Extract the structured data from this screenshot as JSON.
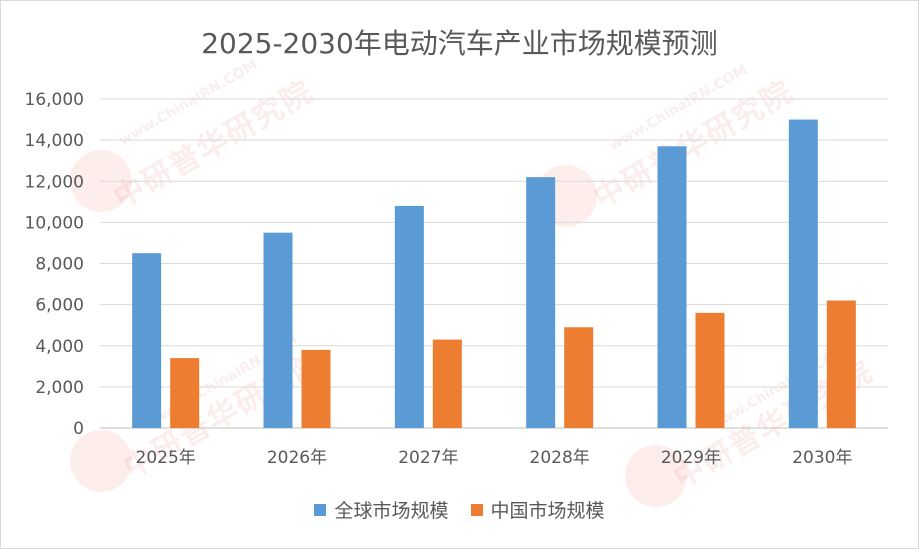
{
  "watermark": {
    "text": "中研普华研究院",
    "url": "www.ChinaIRN.COM",
    "logo": "CIRN"
  },
  "chart_data": {
    "type": "bar",
    "title": "2025-2030年电动汽车产业市场规模预测",
    "xlabel": "",
    "ylabel": "",
    "categories": [
      "2025年",
      "2026年",
      "2027年",
      "2028年",
      "2029年",
      "2030年"
    ],
    "series": [
      {
        "name": "全球市场规模",
        "color": "#5B9BD5",
        "values": [
          8500,
          9500,
          10800,
          12200,
          13700,
          15000
        ]
      },
      {
        "name": "中国市场规模",
        "color": "#ED7D31",
        "values": [
          3400,
          3800,
          4300,
          4900,
          5600,
          6200
        ]
      }
    ],
    "ylim": [
      0,
      16000
    ],
    "yticks": [
      "0",
      "2,000",
      "4,000",
      "6,000",
      "8,000",
      "10,000",
      "12,000",
      "14,000",
      "16,000"
    ],
    "grid": true,
    "legend_position": "bottom"
  }
}
